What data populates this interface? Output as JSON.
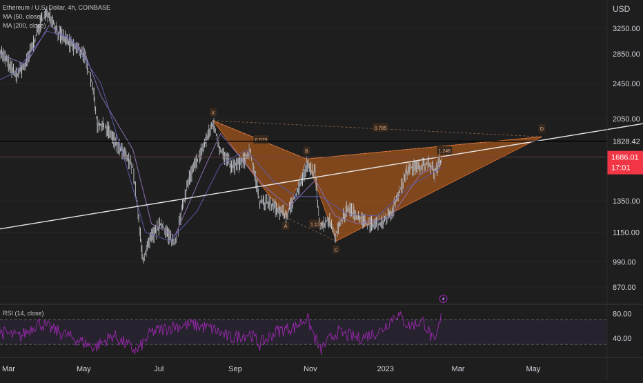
{
  "header": {
    "symbol_line": "Ethereum / U.S. Dollar, 4h, COINBASE",
    "ma50_label": "MA (50, close)",
    "ma200_label": "MA (200, close)",
    "currency": "USD"
  },
  "price_panel": {
    "scale": "log",
    "ylim": [
      800,
      3750
    ],
    "ticks": [
      3250,
      2850,
      2450,
      2050,
      1350,
      1150,
      990,
      870
    ],
    "tick_labels": [
      "3250.00",
      "2850.00",
      "2450.00",
      "2050.00",
      "1350.00",
      "1150.00",
      "990.00",
      "870.00"
    ],
    "hline": {
      "value": 1828.42,
      "label": "1828.42"
    },
    "last_price": {
      "value": 1686.01,
      "label": "1686.01",
      "countdown": "17:01"
    }
  },
  "rsi_panel": {
    "label": "RSI (14, close)",
    "ylim": [
      10,
      95
    ],
    "ticks": [
      80,
      40
    ],
    "tick_labels": [
      "80.00",
      "40.00"
    ],
    "upper_band": 70,
    "lower_band": 30
  },
  "x_axis": {
    "labels": [
      "Mar",
      "May",
      "Jul",
      "Sep",
      "Nov",
      "2023",
      "Mar",
      "May"
    ],
    "dates": [
      "2022-03-01",
      "2022-05-01",
      "2022-07-01",
      "2022-09-01",
      "2022-11-01",
      "2023-01-01",
      "2023-03-01",
      "2023-05-01"
    ]
  },
  "chart_data": {
    "type": "line",
    "title": "Ethereum / U.S. Dollar, 4h, COINBASE",
    "y_scale": "log",
    "ylim": [
      800,
      3750
    ],
    "series": [
      {
        "name": "Ethereum / U.S. Dollar",
        "x": [
          "2022-02-22",
          "2022-03-07",
          "2022-03-15",
          "2022-03-28",
          "2022-04-03",
          "2022-04-10",
          "2022-04-20",
          "2022-05-01",
          "2022-05-08",
          "2022-05-12",
          "2022-05-20",
          "2022-05-28",
          "2022-06-10",
          "2022-06-18",
          "2022-06-25",
          "2022-07-03",
          "2022-07-14",
          "2022-07-25",
          "2022-08-05",
          "2022-08-14",
          "2022-08-20",
          "2022-08-29",
          "2022-09-08",
          "2022-09-13",
          "2022-09-21",
          "2022-10-01",
          "2022-10-13",
          "2022-10-25",
          "2022-10-29",
          "2022-11-05",
          "2022-11-09",
          "2022-11-16",
          "2022-11-21",
          "2022-12-01",
          "2022-12-10",
          "2022-12-16",
          "2022-12-26",
          "2023-01-05",
          "2023-01-12",
          "2023-01-20",
          "2023-01-29",
          "2023-02-05",
          "2023-02-10",
          "2023-02-16"
        ],
        "y": [
          2900,
          2550,
          2700,
          3400,
          3520,
          3180,
          3000,
          2850,
          2450,
          2000,
          1950,
          1800,
          1600,
          1000,
          1120,
          1200,
          1080,
          1500,
          1750,
          2000,
          1750,
          1600,
          1650,
          1750,
          1350,
          1320,
          1250,
          1500,
          1620,
          1550,
          1180,
          1230,
          1130,
          1300,
          1250,
          1200,
          1200,
          1250,
          1400,
          1600,
          1600,
          1650,
          1560,
          1690
        ]
      },
      {
        "name": "MA (50, close)",
        "x": [
          "2022-02-22",
          "2022-03-15",
          "2022-04-03",
          "2022-05-01",
          "2022-05-15",
          "2022-06-10",
          "2022-06-25",
          "2022-07-14",
          "2022-08-05",
          "2022-08-20",
          "2022-09-08",
          "2022-09-25",
          "2022-10-15",
          "2022-11-05",
          "2022-11-21",
          "2022-12-10",
          "2023-01-05",
          "2023-01-29",
          "2023-02-16"
        ],
        "y": [
          2850,
          2700,
          3300,
          2900,
          2300,
          1750,
          1200,
          1130,
          1550,
          1900,
          1650,
          1450,
          1310,
          1500,
          1250,
          1200,
          1240,
          1540,
          1640
        ]
      },
      {
        "name": "MA (200, close)",
        "x": [
          "2022-02-22",
          "2022-03-07",
          "2022-04-01",
          "2022-04-20",
          "2022-05-15",
          "2022-06-05",
          "2022-06-20",
          "2022-07-10",
          "2022-08-01",
          "2022-08-20",
          "2022-09-10",
          "2022-10-01",
          "2022-10-20",
          "2022-11-10",
          "2022-12-01",
          "2022-12-26",
          "2023-01-20",
          "2023-02-16"
        ],
        "y": [
          2500,
          2600,
          3200,
          3100,
          2450,
          1600,
          1150,
          1100,
          1280,
          1620,
          1750,
          1500,
          1380,
          1380,
          1260,
          1250,
          1450,
          1600
        ]
      }
    ],
    "pattern": {
      "points": [
        {
          "label": "X",
          "date": "2022-08-14",
          "price": 2030
        },
        {
          "label": "A",
          "date": "2022-10-12",
          "price": 1240
        },
        {
          "label": "B",
          "date": "2022-10-29",
          "price": 1670
        },
        {
          "label": "C",
          "date": "2022-11-22",
          "price": 1100
        },
        {
          "label": "D",
          "date": "2023-05-08",
          "price": 1870
        }
      ],
      "ratios": [
        {
          "text": "0.579",
          "date": "2022-09-22",
          "price": 1845
        },
        {
          "text": "0.785",
          "date": "2022-12-28",
          "price": 1960
        },
        {
          "text": "1.139",
          "date": "2022-11-06",
          "price": 1200
        },
        {
          "text": "1.246",
          "date": "2023-02-18",
          "price": 1745
        }
      ]
    },
    "trendline": [
      {
        "date": "2022-02-22",
        "price": 1170
      },
      {
        "date": "2023-06-30",
        "price": 1940
      }
    ],
    "rsi": {
      "name": "RSI (14, close)",
      "x": [
        "2022-02-22",
        "2022-03-10",
        "2022-03-25",
        "2022-04-05",
        "2022-04-25",
        "2022-05-10",
        "2022-05-25",
        "2022-06-13",
        "2022-06-25",
        "2022-07-15",
        "2022-07-28",
        "2022-08-14",
        "2022-08-28",
        "2022-09-13",
        "2022-09-21",
        "2022-10-05",
        "2022-10-20",
        "2022-10-29",
        "2022-11-09",
        "2022-11-22",
        "2022-12-10",
        "2022-12-28",
        "2023-01-10",
        "2023-01-20",
        "2023-02-01",
        "2023-02-10",
        "2023-02-16"
      ],
      "y": [
        50,
        42,
        65,
        55,
        38,
        25,
        45,
        18,
        50,
        60,
        62,
        55,
        40,
        48,
        30,
        52,
        58,
        74,
        20,
        50,
        40,
        52,
        80,
        60,
        68,
        30,
        80
      ]
    },
    "x_ticks": [
      "Mar",
      "May",
      "Jul",
      "Sep",
      "Nov",
      "2023",
      "Mar",
      "May"
    ]
  }
}
